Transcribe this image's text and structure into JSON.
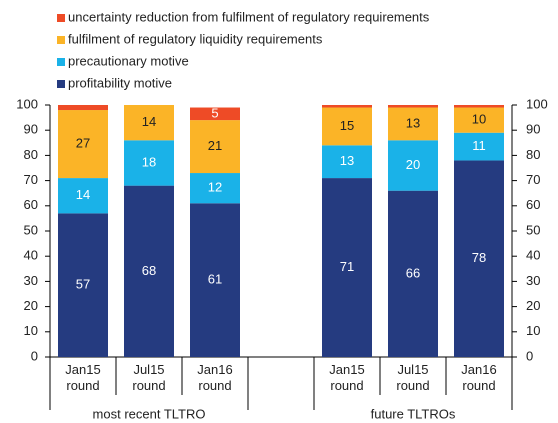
{
  "chart_data": {
    "type": "stacked-bar",
    "categories": [
      "Jan15 round",
      "Jul15 round",
      "Jan16 round",
      null,
      "Jan15 round",
      "Jul15 round",
      "Jan16 round"
    ],
    "groups": [
      "most recent TLTRO",
      "future TLTROs"
    ],
    "series": [
      {
        "name": "profitability motive",
        "color": "#253b80",
        "values": [
          57,
          68,
          61,
          null,
          71,
          66,
          78
        ]
      },
      {
        "name": "precautionary motive",
        "color": "#1ab2e8",
        "values": [
          14,
          18,
          12,
          null,
          13,
          20,
          11
        ]
      },
      {
        "name": "fulfilment of regulatory liquidity requirements",
        "color": "#fbb427",
        "values": [
          27,
          14,
          21,
          null,
          15,
          13,
          10
        ]
      },
      {
        "name": "uncertainty reduction from fulfilment of regulatory requirements",
        "color": "#ee4b26",
        "values": [
          2,
          0,
          5,
          null,
          1,
          1,
          1
        ]
      }
    ],
    "ylim": [
      0,
      100
    ],
    "yticks": [
      0,
      10,
      20,
      30,
      40,
      50,
      60,
      70,
      80,
      90,
      100
    ],
    "y2lim": [
      0,
      100
    ],
    "y2ticks": [
      0,
      10,
      20,
      30,
      40,
      50,
      60,
      70,
      80,
      90,
      100
    ]
  }
}
